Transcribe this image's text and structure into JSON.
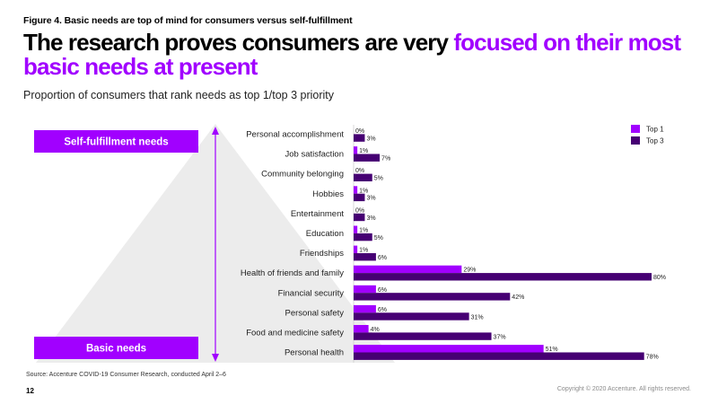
{
  "figure_label": "Figure 4. Basic needs are top of mind for consumers versus self-fulfillment",
  "headline": {
    "part1": "The research proves consumers are very ",
    "accent": "focused on their most basic needs at present"
  },
  "subtitle": "Proportion of consumers that rank needs as top 1/top 3 priority",
  "pyramid": {
    "top_label": "Self-fulfillment needs",
    "bottom_label": "Basic needs"
  },
  "colors": {
    "top1": "#a100ff",
    "top3": "#460073",
    "pyramid": "#ececec",
    "arrow": "#a100ff"
  },
  "chart_data": {
    "type": "bar",
    "orientation": "horizontal",
    "categories": [
      "Personal accomplishment",
      "Job satisfaction",
      "Community belonging",
      "Hobbies",
      "Entertainment",
      "Education",
      "Friendships",
      "Health of friends and family",
      "Financial security",
      "Personal safety",
      "Food and medicine safety",
      "Personal health"
    ],
    "series": [
      {
        "name": "Top 1",
        "values": [
          0,
          1,
          0,
          1,
          0,
          1,
          1,
          29,
          6,
          6,
          4,
          51
        ],
        "labels": [
          "0%",
          "1%",
          "0%",
          "1%",
          "0%",
          "1%",
          "1%",
          "29%",
          "6%",
          "6%",
          "4%",
          "51%"
        ]
      },
      {
        "name": "Top 3",
        "values": [
          3,
          7,
          5,
          3,
          3,
          5,
          6,
          80,
          42,
          31,
          37,
          78
        ],
        "labels": [
          "3%",
          "7%",
          "5%",
          "3%",
          "3%",
          "5%",
          "6%",
          "80%",
          "42%",
          "31%",
          "37%",
          "78%"
        ]
      }
    ],
    "xlim": [
      0,
      100
    ],
    "legend": "top-right",
    "grid": false
  },
  "footer": {
    "source": "Source: Accenture COVID-19 Consumer Research, conducted April 2–6",
    "page": "12",
    "copyright": "Copyright © 2020 Accenture. All rights reserved."
  }
}
